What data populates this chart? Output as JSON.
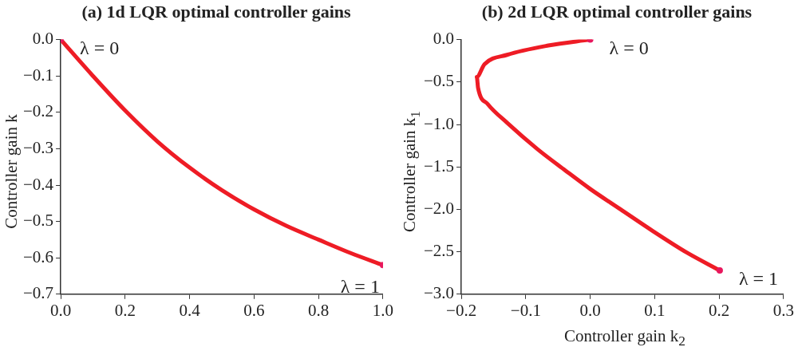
{
  "chart_data": [
    {
      "type": "line",
      "title": "(a) 1d LQR optimal controller gains",
      "ylabel": "Controller gain k",
      "xlim": [
        0,
        1
      ],
      "ylim": [
        -0.7,
        0
      ],
      "grid": false,
      "legend": false,
      "marker": "none",
      "line_style": "solid",
      "xticks": [
        {
          "value": 0,
          "label": "0.0"
        },
        {
          "value": 0.2,
          "label": "0.2"
        },
        {
          "value": 0.4,
          "label": "0.4"
        },
        {
          "value": 0.6,
          "label": "0.6"
        },
        {
          "value": 0.8,
          "label": "0.8"
        },
        {
          "value": 1,
          "label": "1.0"
        }
      ],
      "yticks": [
        {
          "value": 0,
          "label": "0.0"
        },
        {
          "value": -0.1,
          "label": "−0.1"
        },
        {
          "value": -0.2,
          "label": "−0.2"
        },
        {
          "value": -0.3,
          "label": "−0.3"
        },
        {
          "value": -0.4,
          "label": "−0.4"
        },
        {
          "value": -0.5,
          "label": "−0.5"
        },
        {
          "value": -0.6,
          "label": "−0.6"
        },
        {
          "value": -0.7,
          "label": "−0.7"
        }
      ],
      "series": [
        {
          "type": "line",
          "color": "#ee1c25",
          "x": [
            0,
            0.1,
            0.2,
            0.3,
            0.4,
            0.5,
            0.6,
            0.7,
            0.8,
            0.9,
            1
          ],
          "values": [
            0,
            -0.1,
            -0.195,
            -0.28,
            -0.352,
            -0.414,
            -0.467,
            -0.512,
            -0.55,
            -0.587,
            -0.62
          ]
        },
        {
          "type": "scatter",
          "color": "#e8175d",
          "marker": "circle",
          "x": [
            0,
            1
          ],
          "values": [
            0,
            -0.62
          ]
        }
      ],
      "annotations": [
        {
          "text": "λ = 0",
          "x": 0,
          "y": 0
        },
        {
          "text": "λ = 1",
          "x": 1,
          "y": -0.62
        }
      ]
    },
    {
      "type": "line",
      "title": "(b) 2d LQR optimal controller gains",
      "xlabel": "Controller gain k$_{2}$",
      "ylabel": "Controller gain k$_{1}$",
      "xlim": [
        -0.2,
        0.3
      ],
      "ylim": [
        -3,
        0
      ],
      "grid": false,
      "legend": false,
      "marker": "none",
      "line_style": "solid",
      "xticks": [
        {
          "value": -0.2,
          "label": "−0.2"
        },
        {
          "value": -0.1,
          "label": "−0.1"
        },
        {
          "value": 0,
          "label": "0.0"
        },
        {
          "value": 0.1,
          "label": "0.1"
        },
        {
          "value": 0.2,
          "label": "0.2"
        },
        {
          "value": 0.3,
          "label": "0.3"
        }
      ],
      "yticks": [
        {
          "value": 0,
          "label": "0.0"
        },
        {
          "value": -0.5,
          "label": "−0.5"
        },
        {
          "value": -1,
          "label": "−1.0"
        },
        {
          "value": -1.5,
          "label": "−1.5"
        },
        {
          "value": -2,
          "label": "−2.0"
        },
        {
          "value": -2.5,
          "label": "−2.5"
        },
        {
          "value": -3,
          "label": "−3.0"
        }
      ],
      "series": [
        {
          "type": "line",
          "color": "#ee1c25",
          "x": [
            0,
            -0.065,
            -0.129,
            -0.164,
            -0.176,
            -0.174,
            -0.159,
            -0.129,
            -0.082,
            -0.039,
            0,
            0.047,
            0.098,
            0.15,
            0.201
          ],
          "values": [
            0,
            -0.07,
            -0.18,
            -0.29,
            -0.44,
            -0.57,
            -0.76,
            -0.98,
            -1.29,
            -1.54,
            -1.76,
            -2.0,
            -2.26,
            -2.51,
            -2.72
          ]
        },
        {
          "type": "scatter",
          "color": "#e8175d",
          "marker": "circle",
          "x": [
            0,
            0.201
          ],
          "values": [
            0,
            -2.72
          ]
        }
      ],
      "annotations": [
        {
          "text": "λ = 0",
          "x": 0,
          "y": 0
        },
        {
          "text": "λ = 1",
          "x": 0.201,
          "y": -2.72
        }
      ]
    }
  ]
}
